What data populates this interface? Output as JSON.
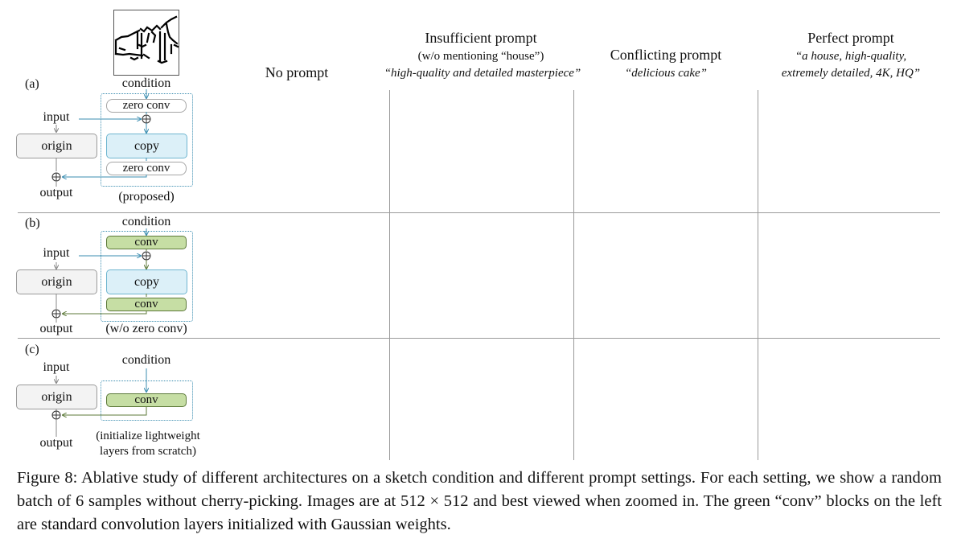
{
  "figure": {
    "headers": {
      "no_prompt": "No prompt",
      "insufficient_title": "Insufficient prompt",
      "insufficient_sub": "(w/o mentioning “house”)",
      "insufficient_quote": "“high-quality and detailed masterpiece”",
      "conflicting_title": "Conflicting prompt",
      "conflicting_quote": "“delicious cake”",
      "perfect_title": "Perfect prompt",
      "perfect_quote_1": "“a house, high-quality,",
      "perfect_quote_2": "extremely detailed, 4K, HQ”"
    },
    "rows": [
      {
        "label": "(a)",
        "condition": "condition",
        "input": "input",
        "origin": "origin",
        "output": "output",
        "top_block": "zero conv",
        "copy": "copy",
        "bottom_block": "zero conv",
        "note": "(proposed)"
      },
      {
        "label": "(b)",
        "condition": "condition",
        "input": "input",
        "origin": "origin",
        "output": "output",
        "top_block": "conv",
        "copy": "copy",
        "bottom_block": "conv",
        "note": "(w/o zero conv)"
      },
      {
        "label": "(c)",
        "condition": "condition",
        "input": "input",
        "origin": "origin",
        "output": "output",
        "block": "conv",
        "note_1": "(initialize lightweight",
        "note_2": "layers from scratch)"
      }
    ],
    "caption": "Figure 8: Ablative study of different architectures on a sketch condition and different prompt settings. For each setting, we show a random batch of 6 samples without cherry-picking. Images are at 512 × 512 and best viewed when zoomed in. The green “conv” blocks on the left are standard convolution layers initialized with Gaussian weights."
  },
  "colors": {
    "copy_fill": "#dcf0f8",
    "conv_fill": "#c6dea4",
    "arrow_blue": "#3b8db0",
    "arrow_green": "#5d7a3a"
  }
}
